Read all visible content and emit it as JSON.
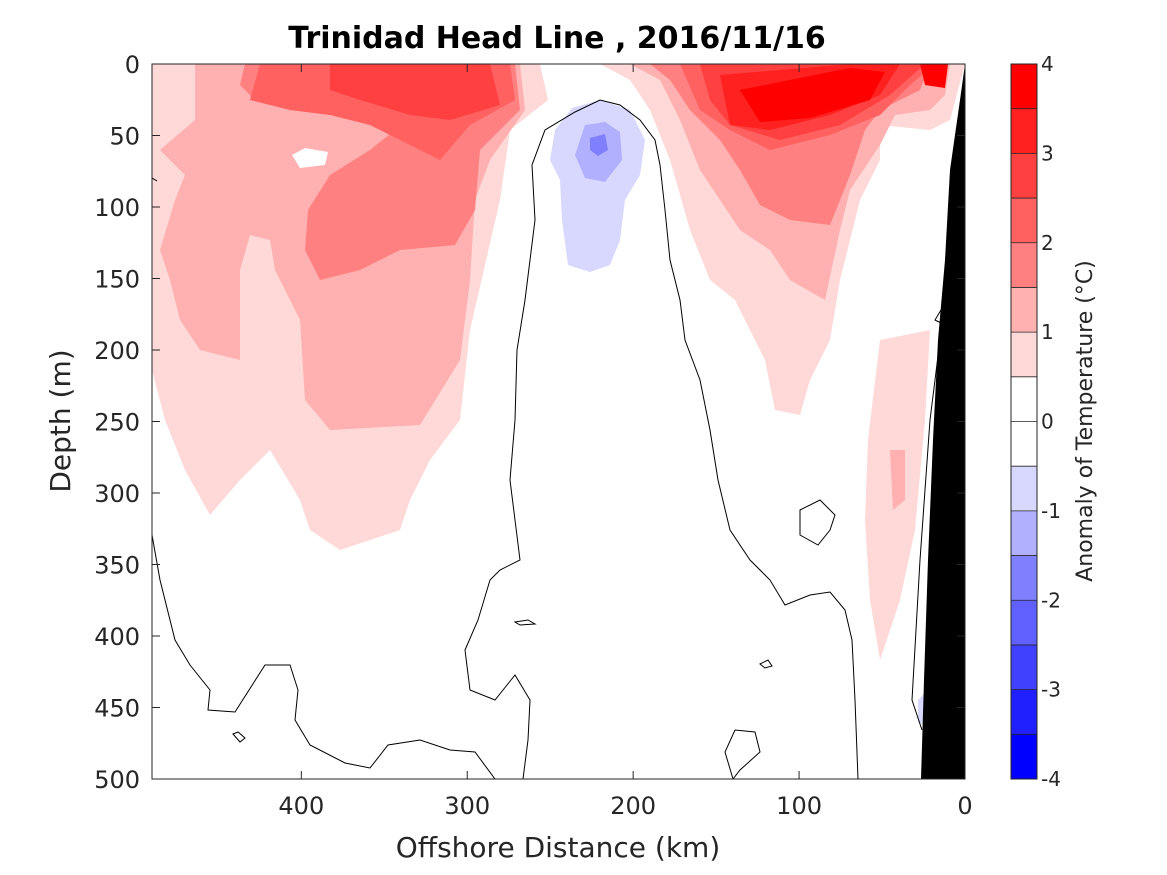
{
  "chart_data": {
    "type": "heatmap",
    "title": "Trinidad Head Line , 2016/11/16",
    "xlabel": "Offshore Distance (km)",
    "ylabel": "Depth (m)",
    "xlim": [
      490,
      0
    ],
    "ylim": [
      0,
      500
    ],
    "x_reversed": true,
    "y_reversed": true,
    "x_ticks": [
      400,
      300,
      200,
      100,
      0
    ],
    "y_ticks": [
      0,
      50,
      100,
      150,
      200,
      250,
      300,
      350,
      400,
      450,
      500
    ],
    "colorbar": {
      "label": "Anomaly of Temperature (°C)",
      "ticks": [
        4,
        3,
        2,
        1,
        0,
        -1,
        -2,
        -3,
        -4
      ],
      "levels": [
        {
          "range": [
            3.5,
            4
          ],
          "color": "#ff0000"
        },
        {
          "range": [
            3,
            3.5
          ],
          "color": "#ff2020"
        },
        {
          "range": [
            2.5,
            3
          ],
          "color": "#ff4040"
        },
        {
          "range": [
            2,
            2.5
          ],
          "color": "#ff6060"
        },
        {
          "range": [
            1.5,
            2
          ],
          "color": "#ff8080"
        },
        {
          "range": [
            1,
            1.5
          ],
          "color": "#ffb0b0"
        },
        {
          "range": [
            0.5,
            1
          ],
          "color": "#ffd8d8"
        },
        {
          "range": [
            0,
            0.5
          ],
          "color": "#ffffff"
        },
        {
          "range": [
            -0.5,
            0
          ],
          "color": "#ffffff"
        },
        {
          "range": [
            -1,
            -0.5
          ],
          "color": "#d8d8ff"
        },
        {
          "range": [
            -1.5,
            -1
          ],
          "color": "#b0b0ff"
        },
        {
          "range": [
            -2,
            -1.5
          ],
          "color": "#8080ff"
        },
        {
          "range": [
            -2.5,
            -2
          ],
          "color": "#6060ff"
        },
        {
          "range": [
            -3,
            -2.5
          ],
          "color": "#4040ff"
        },
        {
          "range": [
            -3.5,
            -3
          ],
          "color": "#2020ff"
        },
        {
          "range": [
            -4,
            -3.5
          ],
          "color": "#0000ff"
        }
      ]
    },
    "features": [
      {
        "name": "warm surface core west",
        "anomaly": 2.5,
        "x_range": [
          360,
          300
        ],
        "depth_range": [
          0,
          45
        ]
      },
      {
        "name": "warm surface core east",
        "anomaly": 3.5,
        "x_range": [
          150,
          30
        ],
        "depth_range": [
          0,
          60
        ]
      },
      {
        "name": "cold subsurface core",
        "anomaly": -1.5,
        "x_center": 220,
        "depth_center": 58
      },
      {
        "name": "cool tongue",
        "anomaly": -0.5,
        "x_range": [
          250,
          200
        ],
        "depth_range": [
          45,
          145
        ]
      },
      {
        "name": "zero contour dome",
        "anomaly": 0,
        "x_range": [
          270,
          175
        ],
        "depth_range": [
          25,
          500
        ]
      }
    ],
    "bathymetry_color": "#000000",
    "grid": false
  }
}
